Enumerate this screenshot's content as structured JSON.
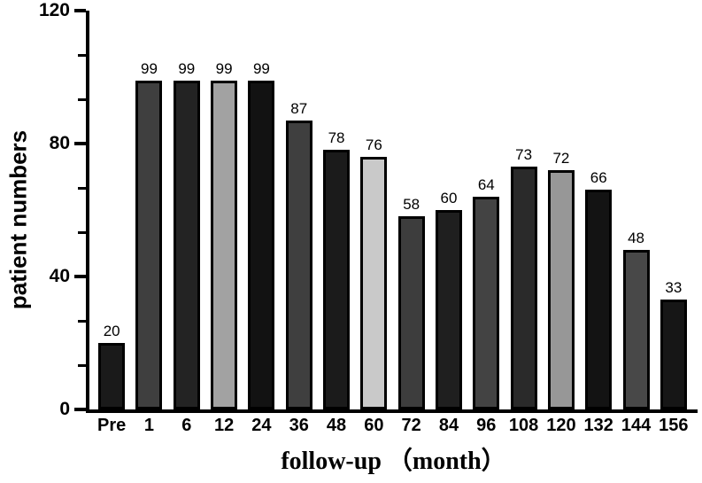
{
  "chart_data": {
    "type": "bar",
    "title": "",
    "xlabel": "follow-up （month）",
    "ylabel": "patient numbers",
    "categories": [
      "Pre",
      "1",
      "6",
      "12",
      "24",
      "36",
      "48",
      "60",
      "72",
      "84",
      "96",
      "108",
      "120",
      "132",
      "144",
      "156"
    ],
    "values": [
      20,
      99,
      99,
      99,
      99,
      87,
      78,
      76,
      58,
      60,
      64,
      73,
      72,
      66,
      48,
      33
    ],
    "bar_colors": [
      "#1a1a1a",
      "#3f3f3f",
      "#232323",
      "#a2a2a2",
      "#121212",
      "#3f3f3f",
      "#1b1b1b",
      "#c9c9c9",
      "#3d3d3d",
      "#1f1f1f",
      "#434343",
      "#2a2a2a",
      "#979797",
      "#131313",
      "#484848",
      "#161616"
    ],
    "bar_outline_color": "#000000",
    "axis_color": "#000000",
    "ylim": [
      0,
      120
    ],
    "yticks": [
      0,
      40,
      80,
      120
    ],
    "minor_ticks_per_major_interval": 2,
    "grid": "off",
    "legend": "none",
    "value_labels_shown": true
  }
}
